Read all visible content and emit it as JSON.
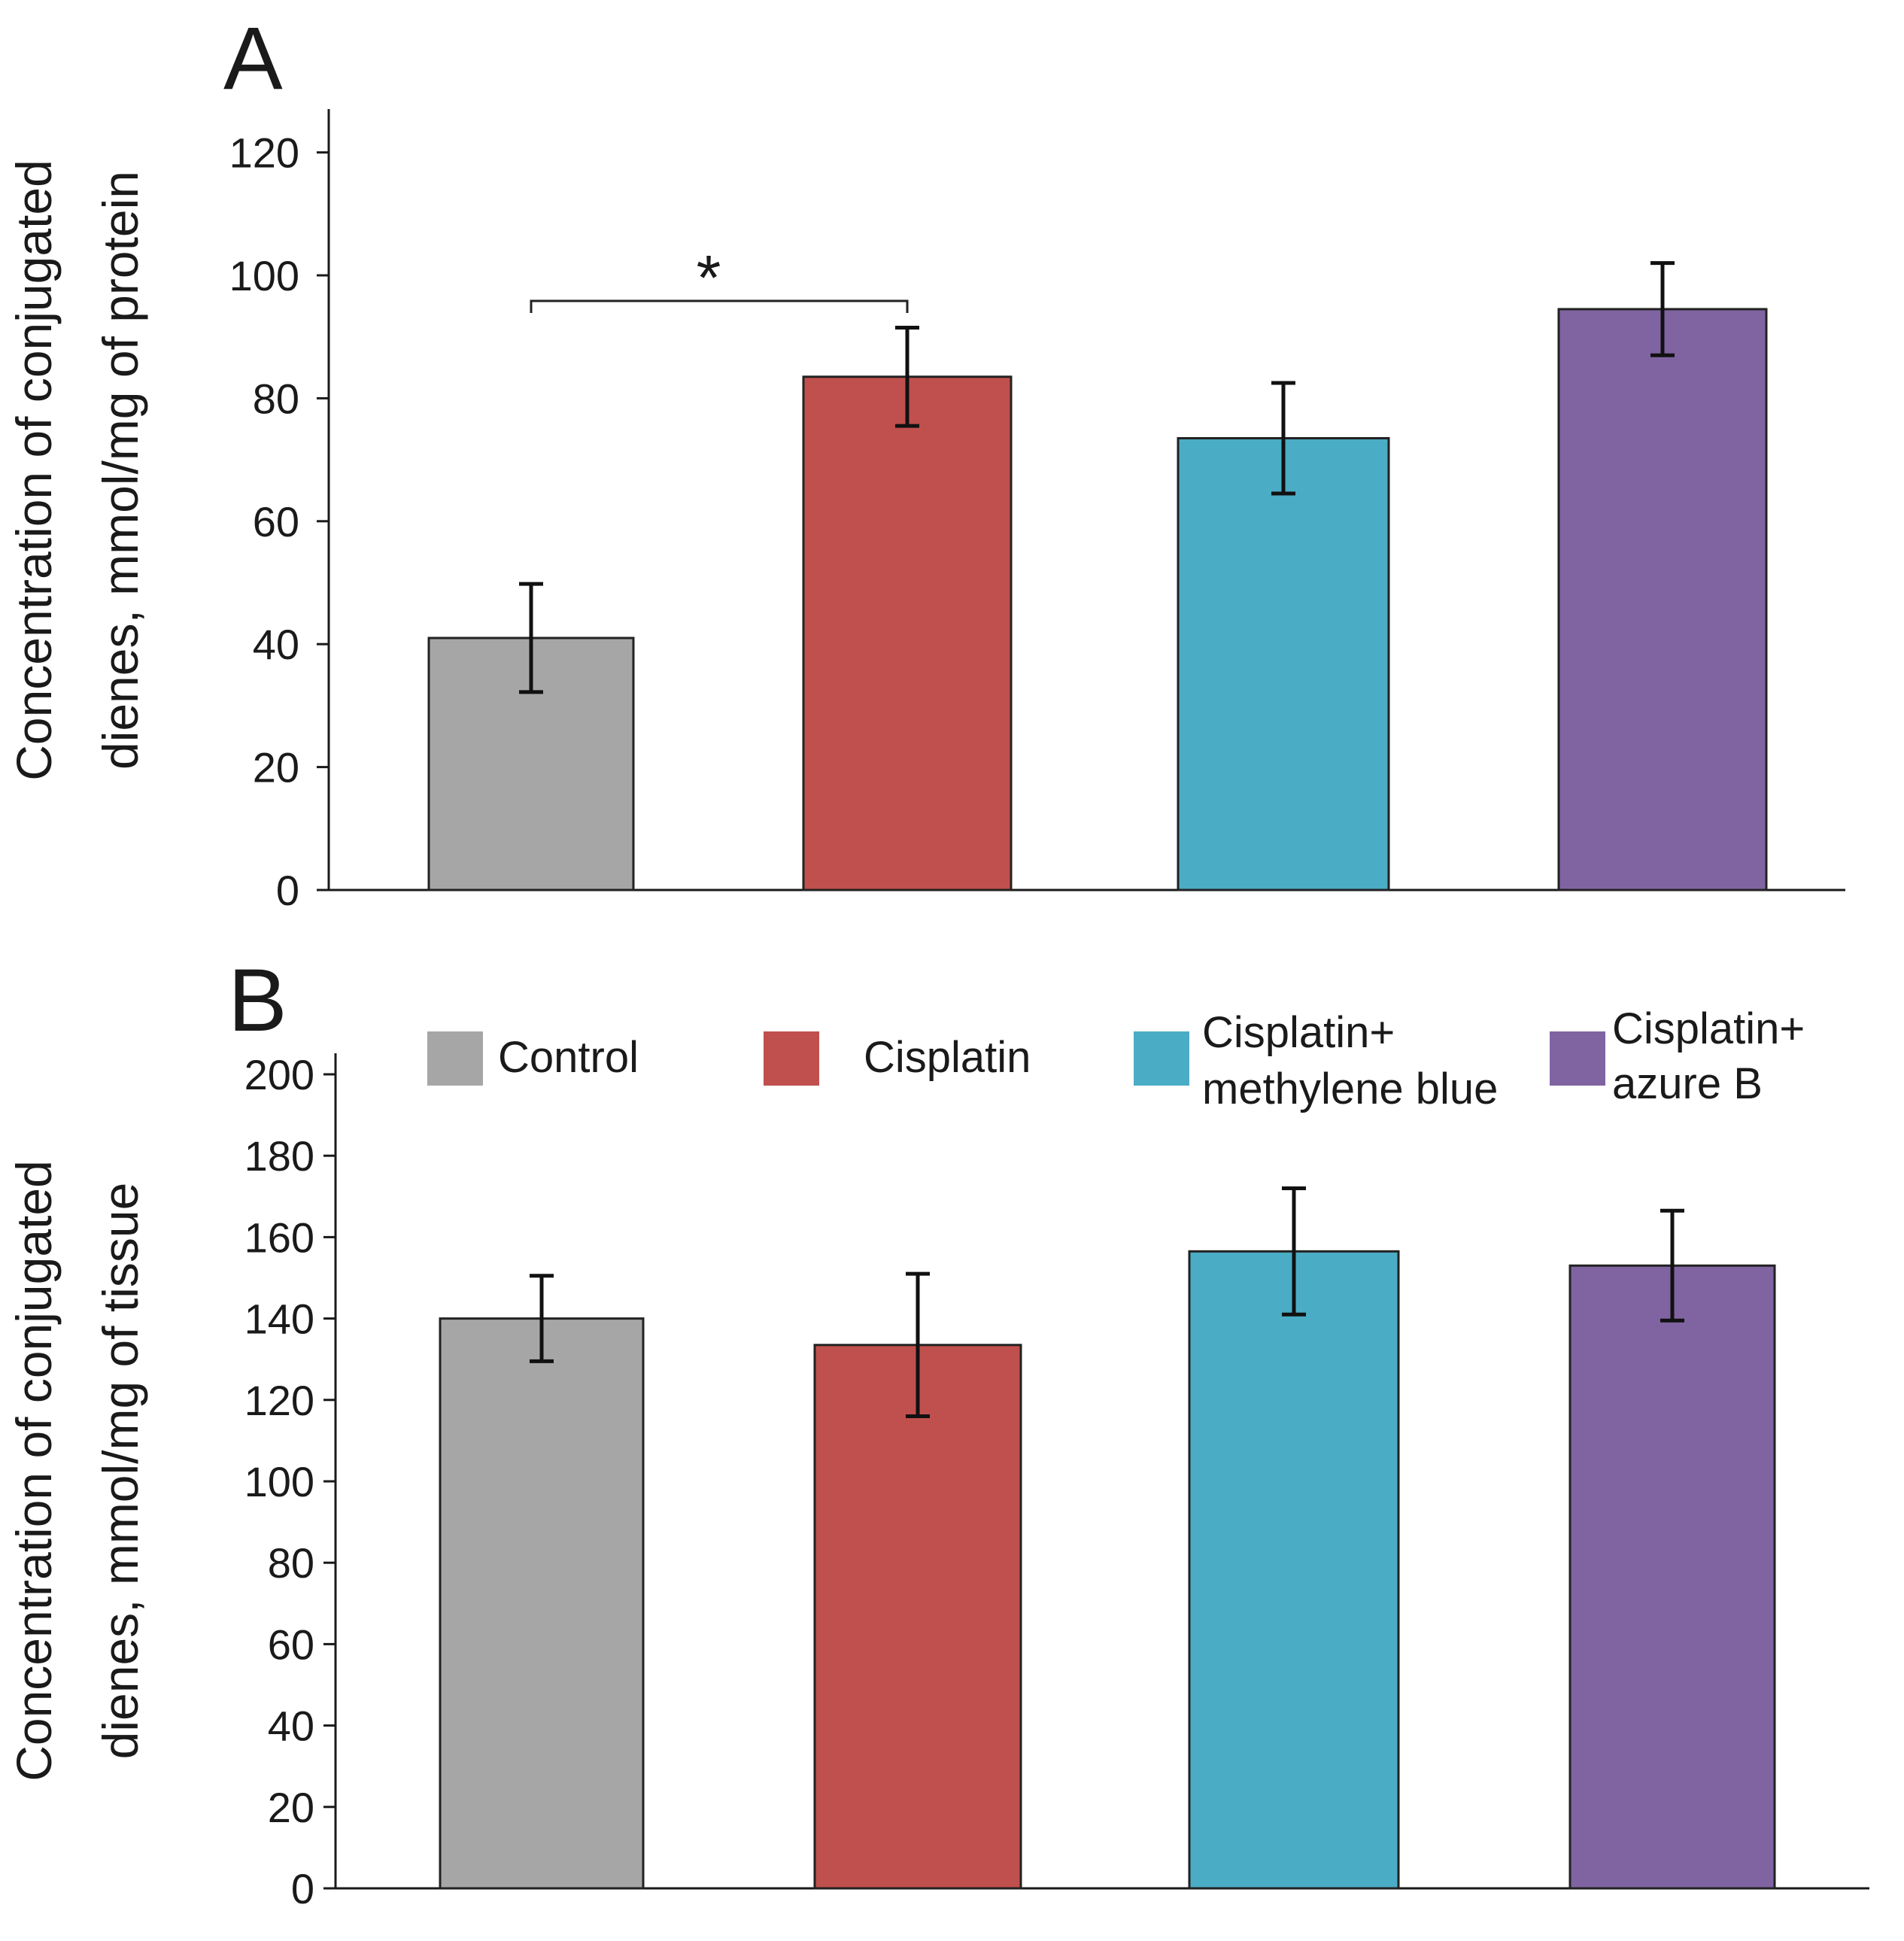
{
  "chart_data": [
    {
      "panel": "A",
      "type": "bar",
      "categories": [
        "Control",
        "Cisplatin",
        "Cisplatin+ methylene blue",
        "Cisplatin+ azure B"
      ],
      "values": [
        41,
        83.5,
        73.5,
        94.5
      ],
      "errors": [
        8.8,
        8,
        9,
        7.5
      ],
      "colors": [
        "#a6a6a6",
        "#c0504d",
        "#4bacc6",
        "#8064a2"
      ],
      "ylabel_lines": [
        "Concentration of conjugated",
        "dienes, mmol/mg of protein"
      ],
      "ylim": [
        0,
        127
      ],
      "yticks": [
        "0",
        "20",
        "40",
        "60",
        "80",
        "100",
        "120"
      ],
      "annotations": [
        {
          "text": "*",
          "from": 0,
          "to": 1
        }
      ]
    },
    {
      "panel": "B",
      "type": "bar",
      "categories": [
        "Control",
        "Cisplatin",
        "Cisplatin+ methylene blue",
        "Cisplatin+ azure B"
      ],
      "values": [
        140,
        133.5,
        156.5,
        153
      ],
      "errors": [
        10.5,
        17.5,
        15.5,
        13.5
      ],
      "colors": [
        "#a6a6a6",
        "#c0504d",
        "#4bacc6",
        "#8064a2"
      ],
      "ylabel_lines": [
        "Concentration of conjugated",
        "dienes, mmol/mg of tissue"
      ],
      "ylim": [
        0,
        206
      ],
      "yticks": [
        "0",
        "20",
        "40",
        "60",
        "80",
        "100",
        "120",
        "140",
        "160",
        "180",
        "200"
      ],
      "annotations": []
    }
  ],
  "legend": [
    {
      "lines": [
        "Control"
      ],
      "color": "#a6a6a6"
    },
    {
      "lines": [
        "Cisplatin"
      ],
      "color": "#c0504d"
    },
    {
      "lines": [
        "Cisplatin+",
        "methylene blue"
      ],
      "color": "#4bacc6"
    },
    {
      "lines": [
        "Cisplatin+",
        "azure B"
      ],
      "color": "#8064a2"
    }
  ]
}
